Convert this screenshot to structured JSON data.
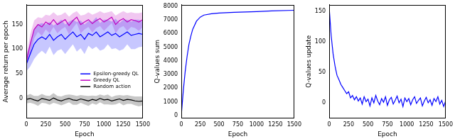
{
  "chart_data": [
    {
      "type": "line",
      "xlabel": "Epoch",
      "ylabel": "Average return per epoch",
      "x": [
        0,
        50,
        100,
        150,
        200,
        250,
        300,
        350,
        400,
        450,
        500,
        550,
        600,
        650,
        700,
        750,
        800,
        850,
        900,
        950,
        1000,
        1050,
        1100,
        1150,
        1200,
        1250,
        1300,
        1350,
        1400,
        1450,
        1500
      ],
      "xlim": [
        0,
        1500
      ],
      "xticks": [
        0,
        250,
        500,
        750,
        1000,
        1250,
        1500
      ],
      "ylim": [
        -40,
        190
      ],
      "yticks": [
        0,
        50,
        100,
        150
      ],
      "legend": "lower right",
      "series": [
        {
          "name": "Epsilon-greedy QL",
          "color": "#0000ff",
          "values": [
            70,
            90,
            110,
            120,
            125,
            120,
            130,
            118,
            125,
            130,
            120,
            128,
            135,
            125,
            130,
            120,
            132,
            128,
            135,
            125,
            130,
            135,
            128,
            132,
            125,
            130,
            135,
            128,
            130,
            132,
            130
          ],
          "error": [
            15,
            25,
            30,
            30,
            28,
            30,
            25,
            30,
            28,
            30,
            30,
            28,
            25,
            30,
            28,
            30,
            25,
            28,
            30,
            28,
            30,
            25,
            28,
            30,
            28,
            30,
            25,
            28,
            30,
            28,
            25
          ]
        },
        {
          "name": "Greedy QL",
          "color": "#c000c0",
          "values": [
            75,
            110,
            140,
            150,
            145,
            155,
            150,
            160,
            150,
            155,
            160,
            148,
            158,
            165,
            150,
            155,
            160,
            152,
            158,
            162,
            155,
            160,
            165,
            150,
            158,
            162,
            155,
            160,
            158,
            155,
            160
          ],
          "error": [
            10,
            20,
            18,
            15,
            18,
            15,
            18,
            15,
            18,
            15,
            15,
            18,
            15,
            12,
            18,
            15,
            15,
            18,
            15,
            15,
            18,
            15,
            12,
            18,
            15,
            15,
            18,
            15,
            15,
            18,
            15
          ]
        },
        {
          "name": "Random action",
          "color": "#000000",
          "values": [
            -2,
            0,
            -3,
            -5,
            0,
            -2,
            -4,
            1,
            -3,
            -5,
            -2,
            0,
            -3,
            -4,
            -1,
            -3,
            -5,
            -2,
            -4,
            0,
            -3,
            -2,
            -5,
            -3,
            -1,
            -4,
            -2,
            -3,
            -5,
            -6,
            -5
          ],
          "error": [
            8,
            9,
            8,
            10,
            9,
            8,
            9,
            10,
            8,
            9,
            9,
            8,
            10,
            9,
            8,
            9,
            10,
            8,
            9,
            8,
            9,
            10,
            8,
            9,
            8,
            10,
            9,
            8,
            9,
            10,
            9
          ]
        }
      ]
    },
    {
      "type": "line",
      "xlabel": "Epoch",
      "ylabel": "Q-values sum",
      "x": [
        0,
        25,
        50,
        75,
        100,
        125,
        150,
        200,
        250,
        300,
        400,
        500,
        700,
        1000,
        1200,
        1500
      ],
      "xlim": [
        0,
        1500
      ],
      "xticks": [
        0,
        250,
        500,
        750,
        1000,
        1250,
        1500
      ],
      "ylim": [
        -200,
        8100
      ],
      "yticks": [
        0,
        1000,
        2000,
        3000,
        4000,
        5000,
        6000,
        7000,
        8000
      ],
      "series": [
        {
          "name": "Q-values sum",
          "color": "#0000ff",
          "values": [
            100,
            1800,
            3200,
            4300,
            5200,
            5800,
            6300,
            6900,
            7200,
            7350,
            7450,
            7500,
            7550,
            7600,
            7650,
            7700
          ]
        }
      ]
    },
    {
      "type": "line",
      "xlabel": "Epoch",
      "ylabel": "Q-values update",
      "x": [
        0,
        25,
        50,
        75,
        100,
        125,
        150,
        175,
        200,
        225,
        250,
        275,
        300,
        325,
        350,
        375,
        400,
        425,
        450,
        475,
        500,
        525,
        550,
        575,
        600,
        625,
        650,
        675,
        700,
        725,
        750,
        775,
        800,
        825,
        850,
        875,
        900,
        925,
        950,
        975,
        1000,
        1025,
        1050,
        1075,
        1100,
        1125,
        1150,
        1175,
        1200,
        1225,
        1250,
        1275,
        1300,
        1325,
        1350,
        1375,
        1400,
        1425,
        1450,
        1475,
        1500
      ],
      "xlim": [
        0,
        1500
      ],
      "xticks": [
        0,
        250,
        500,
        750,
        1000,
        1250,
        1500
      ],
      "ylim": [
        -25,
        160
      ],
      "yticks": [
        0,
        50,
        100,
        150
      ],
      "series": [
        {
          "name": "Q-values update",
          "color": "#0000ff",
          "values": [
            155,
            110,
            80,
            60,
            45,
            38,
            30,
            25,
            20,
            15,
            18,
            8,
            12,
            5,
            10,
            3,
            8,
            -2,
            10,
            2,
            6,
            -5,
            8,
            0,
            12,
            3,
            -3,
            7,
            1,
            10,
            -4,
            5,
            9,
            -2,
            4,
            11,
            0,
            6,
            -6,
            8,
            2,
            7,
            -3,
            5,
            10,
            -1,
            4,
            8,
            -5,
            3,
            9,
            0,
            5,
            -4,
            7,
            2,
            10,
            -2,
            4,
            -6,
            3
          ]
        }
      ]
    }
  ]
}
